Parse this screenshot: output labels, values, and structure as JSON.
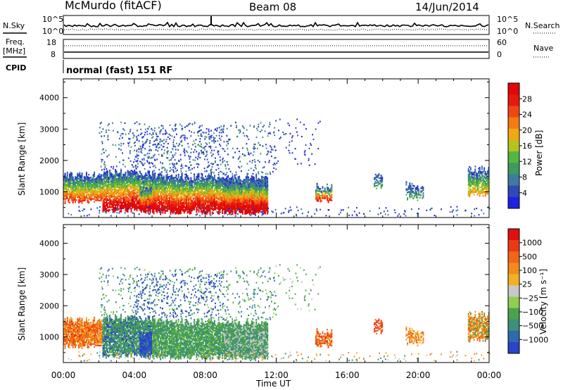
{
  "header": {
    "station": "McMurdo (fitACF)",
    "beam": "Beam 08",
    "date": "14/Jun/2014",
    "mode_line": "normal (fast) 151 RF"
  },
  "noise_panel": {
    "left_label": "N.Sky",
    "right_label": "N.Search",
    "left_ticks": [
      "10^5",
      "10^0"
    ],
    "right_ticks": [
      "10^5",
      "10^0"
    ]
  },
  "freq_panel": {
    "left_label_1": "Freq.",
    "left_label_2": "[MHz]",
    "right_label": "Nave",
    "left_ticks": [
      "18",
      "8"
    ],
    "right_ticks": [
      "60",
      "0"
    ]
  },
  "cpid_label": "CPID",
  "chart_data": [
    {
      "type": "heatmap",
      "name": "power",
      "ylabel": "Slant Range [km]",
      "colorbar_label": "Power [dB]",
      "y_ticks": [
        1000,
        2000,
        3000,
        4000
      ],
      "ylim": [
        180,
        4600
      ],
      "colorbar_ticks": [
        4,
        8,
        12,
        16,
        20,
        24,
        28
      ],
      "colorbar_range": [
        0,
        32
      ],
      "colorbar_colors": [
        "#1e22e0",
        "#2f49b8",
        "#3f7b9c",
        "#3e9a5f",
        "#52b641",
        "#b8c21f",
        "#f0a914",
        "#f47a14",
        "#f04614",
        "#e8170f",
        "#e00808"
      ]
    },
    {
      "type": "heatmap",
      "name": "velocity",
      "ylabel": "Slant Range [km]",
      "colorbar_label": "Velocity [m s⁻¹]",
      "y_ticks": [
        1000,
        2000,
        3000,
        4000
      ],
      "ylim": [
        180,
        4600
      ],
      "colorbar_ticks": [
        "1000",
        "500",
        "100",
        "25",
        "−25",
        "−100",
        "−500",
        "−1000"
      ],
      "colorbar_colors": [
        "#2a44c8",
        "#2f6aae",
        "#3d8f7a",
        "#4aa24e",
        "#8fcf4f",
        "#c8c8c8",
        "#f4b024",
        "#f08c1c",
        "#f0661a",
        "#ea3a15",
        "#e01010"
      ]
    }
  ],
  "time_axis": {
    "label": "Time UT",
    "ticks": [
      "00:00",
      "04:00",
      "08:00",
      "12:00",
      "16:00",
      "20:00",
      "00:00"
    ],
    "range_hours": [
      0,
      24
    ]
  },
  "colors": {
    "axis": "#000000",
    "noise_sky": "#000000",
    "noise_search": "#000000"
  }
}
